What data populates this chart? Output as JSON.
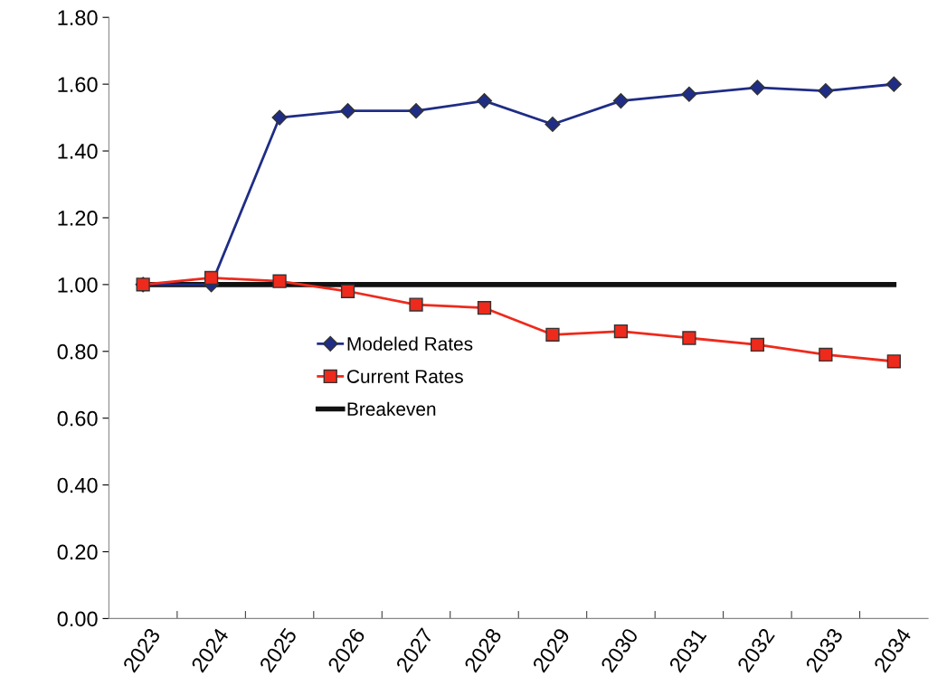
{
  "chart_data": {
    "type": "line",
    "categories": [
      "2023",
      "2024",
      "2025",
      "2026",
      "2027",
      "2028",
      "2029",
      "2030",
      "2031",
      "2032",
      "2033",
      "2034"
    ],
    "series": [
      {
        "name": "Modeled Rates",
        "color": "#1f2d86",
        "marker": "diamond",
        "values": [
          1.0,
          1.0,
          1.5,
          1.52,
          1.52,
          1.55,
          1.48,
          1.55,
          1.57,
          1.59,
          1.58,
          1.6
        ]
      },
      {
        "name": "Current Rates",
        "color": "#ee2a1c",
        "marker": "square",
        "values": [
          1.0,
          1.02,
          1.01,
          0.98,
          0.94,
          0.93,
          0.85,
          0.86,
          0.84,
          0.82,
          0.79,
          0.77
        ]
      },
      {
        "name": "Breakeven",
        "color": "#111111",
        "marker": "none",
        "values": [
          1.0,
          1.0,
          1.0,
          1.0,
          1.0,
          1.0,
          1.0,
          1.0,
          1.0,
          1.0,
          1.0,
          1.0
        ]
      }
    ],
    "ylim": [
      0,
      1.8
    ],
    "yticks": [
      {
        "value": 0,
        "label": "0.00"
      },
      {
        "value": 0.2,
        "label": "0.20"
      },
      {
        "value": 0.4,
        "label": "0.40"
      },
      {
        "value": 0.6,
        "label": "0.60"
      },
      {
        "value": 0.8,
        "label": "0.80"
      },
      {
        "value": 1.0,
        "label": "1.00"
      },
      {
        "value": 1.2,
        "label": "1.20"
      },
      {
        "value": 1.4,
        "label": "1.40"
      },
      {
        "value": 1.6,
        "label": "1.60"
      },
      {
        "value": 1.8,
        "label": "1.80"
      }
    ],
    "grid": false,
    "legend": "center"
  }
}
